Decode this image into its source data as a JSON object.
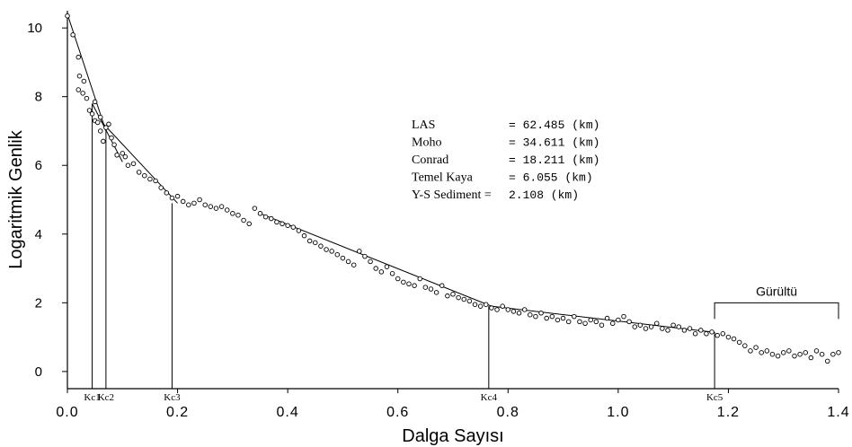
{
  "chart_data": {
    "type": "scatter",
    "title": "",
    "xlabel": "Dalga Sayısı",
    "ylabel": "Logaritmik Genlik",
    "xlim": [
      0.0,
      1.4
    ],
    "ylim": [
      -0.5,
      10.5
    ],
    "xticks": [
      "0.0",
      "0.2",
      "0.4",
      "0.6",
      "0.8",
      "1.0",
      "1.2",
      "1.4"
    ],
    "xtick_values": [
      0.0,
      0.2,
      0.4,
      0.6,
      0.8,
      1.0,
      1.2,
      1.4
    ],
    "yticks": [
      "0",
      "2",
      "4",
      "6",
      "8",
      "10"
    ],
    "ytick_values": [
      0,
      2,
      4,
      6,
      8,
      10
    ],
    "grid": false,
    "series": [
      {
        "style": "open-circles",
        "points": [
          [
            0.0,
            10.35
          ],
          [
            0.01,
            9.8
          ],
          [
            0.02,
            9.15
          ],
          [
            0.022,
            8.6
          ],
          [
            0.02,
            8.2
          ],
          [
            0.028,
            8.1
          ],
          [
            0.03,
            8.45
          ],
          [
            0.035,
            7.95
          ],
          [
            0.04,
            7.6
          ],
          [
            0.045,
            7.5
          ],
          [
            0.05,
            7.85
          ],
          [
            0.05,
            7.3
          ],
          [
            0.055,
            7.25
          ],
          [
            0.06,
            7.0
          ],
          [
            0.06,
            7.4
          ],
          [
            0.065,
            6.7
          ],
          [
            0.07,
            7.1
          ],
          [
            0.075,
            7.2
          ],
          [
            0.08,
            6.8
          ],
          [
            0.085,
            6.6
          ],
          [
            0.09,
            6.3
          ],
          [
            0.1,
            6.35
          ],
          [
            0.105,
            6.25
          ],
          [
            0.11,
            6.0
          ],
          [
            0.12,
            6.05
          ],
          [
            0.13,
            5.8
          ],
          [
            0.14,
            5.7
          ],
          [
            0.15,
            5.6
          ],
          [
            0.16,
            5.55
          ],
          [
            0.17,
            5.35
          ],
          [
            0.18,
            5.2
          ],
          [
            0.19,
            5.05
          ],
          [
            0.2,
            5.1
          ],
          [
            0.21,
            4.95
          ],
          [
            0.22,
            4.85
          ],
          [
            0.23,
            4.9
          ],
          [
            0.24,
            5.0
          ],
          [
            0.25,
            4.85
          ],
          [
            0.26,
            4.8
          ],
          [
            0.27,
            4.75
          ],
          [
            0.28,
            4.8
          ],
          [
            0.29,
            4.7
          ],
          [
            0.3,
            4.6
          ],
          [
            0.31,
            4.55
          ],
          [
            0.32,
            4.4
          ],
          [
            0.33,
            4.3
          ],
          [
            0.34,
            4.75
          ],
          [
            0.35,
            4.6
          ],
          [
            0.36,
            4.5
          ],
          [
            0.37,
            4.45
          ],
          [
            0.38,
            4.35
          ],
          [
            0.39,
            4.3
          ],
          [
            0.4,
            4.25
          ],
          [
            0.41,
            4.2
          ],
          [
            0.42,
            4.1
          ],
          [
            0.43,
            3.95
          ],
          [
            0.44,
            3.8
          ],
          [
            0.45,
            3.75
          ],
          [
            0.46,
            3.65
          ],
          [
            0.47,
            3.55
          ],
          [
            0.48,
            3.5
          ],
          [
            0.49,
            3.4
          ],
          [
            0.5,
            3.3
          ],
          [
            0.51,
            3.2
          ],
          [
            0.52,
            3.1
          ],
          [
            0.53,
            3.5
          ],
          [
            0.54,
            3.35
          ],
          [
            0.55,
            3.2
          ],
          [
            0.56,
            3.0
          ],
          [
            0.57,
            2.9
          ],
          [
            0.58,
            3.05
          ],
          [
            0.59,
            2.85
          ],
          [
            0.6,
            2.7
          ],
          [
            0.61,
            2.6
          ],
          [
            0.62,
            2.55
          ],
          [
            0.63,
            2.5
          ],
          [
            0.64,
            2.7
          ],
          [
            0.65,
            2.45
          ],
          [
            0.66,
            2.4
          ],
          [
            0.67,
            2.3
          ],
          [
            0.68,
            2.5
          ],
          [
            0.69,
            2.2
          ],
          [
            0.7,
            2.25
          ],
          [
            0.71,
            2.15
          ],
          [
            0.72,
            2.1
          ],
          [
            0.73,
            2.05
          ],
          [
            0.74,
            1.95
          ],
          [
            0.75,
            1.9
          ],
          [
            0.76,
            1.95
          ],
          [
            0.77,
            1.85
          ],
          [
            0.78,
            1.8
          ],
          [
            0.79,
            1.9
          ],
          [
            0.8,
            1.8
          ],
          [
            0.81,
            1.75
          ],
          [
            0.82,
            1.7
          ],
          [
            0.83,
            1.8
          ],
          [
            0.84,
            1.65
          ],
          [
            0.85,
            1.6
          ],
          [
            0.86,
            1.7
          ],
          [
            0.87,
            1.55
          ],
          [
            0.88,
            1.6
          ],
          [
            0.89,
            1.5
          ],
          [
            0.9,
            1.55
          ],
          [
            0.91,
            1.45
          ],
          [
            0.92,
            1.6
          ],
          [
            0.93,
            1.45
          ],
          [
            0.94,
            1.4
          ],
          [
            0.95,
            1.5
          ],
          [
            0.96,
            1.45
          ],
          [
            0.97,
            1.35
          ],
          [
            0.98,
            1.55
          ],
          [
            0.99,
            1.4
          ],
          [
            1.0,
            1.5
          ],
          [
            1.01,
            1.6
          ],
          [
            1.02,
            1.45
          ],
          [
            1.03,
            1.3
          ],
          [
            1.04,
            1.35
          ],
          [
            1.05,
            1.25
          ],
          [
            1.06,
            1.3
          ],
          [
            1.07,
            1.4
          ],
          [
            1.08,
            1.25
          ],
          [
            1.09,
            1.2
          ],
          [
            1.1,
            1.35
          ],
          [
            1.11,
            1.3
          ],
          [
            1.12,
            1.2
          ],
          [
            1.13,
            1.25
          ],
          [
            1.14,
            1.1
          ],
          [
            1.15,
            1.2
          ],
          [
            1.16,
            1.1
          ],
          [
            1.17,
            1.15
          ],
          [
            1.18,
            1.05
          ],
          [
            1.19,
            1.1
          ],
          [
            1.2,
            1.0
          ],
          [
            1.21,
            0.95
          ],
          [
            1.22,
            0.85
          ],
          [
            1.23,
            0.75
          ],
          [
            1.24,
            0.6
          ],
          [
            1.25,
            0.7
          ],
          [
            1.26,
            0.55
          ],
          [
            1.27,
            0.6
          ],
          [
            1.28,
            0.5
          ],
          [
            1.29,
            0.45
          ],
          [
            1.3,
            0.55
          ],
          [
            1.31,
            0.6
          ],
          [
            1.32,
            0.45
          ],
          [
            1.33,
            0.5
          ],
          [
            1.34,
            0.55
          ],
          [
            1.35,
            0.4
          ],
          [
            1.36,
            0.6
          ],
          [
            1.37,
            0.5
          ],
          [
            1.38,
            0.3
          ],
          [
            1.39,
            0.5
          ],
          [
            1.4,
            0.55
          ]
        ]
      }
    ],
    "fit_lines": [
      [
        [
          0.0,
          10.4
        ],
        [
          0.07,
          7.0
        ]
      ],
      [
        [
          0.045,
          7.8
        ],
        [
          0.1,
          6.1
        ]
      ],
      [
        [
          0.06,
          7.3
        ],
        [
          0.2,
          4.9
        ]
      ],
      [
        [
          0.35,
          4.6
        ],
        [
          0.77,
          1.9
        ]
      ],
      [
        [
          0.77,
          1.9
        ],
        [
          1.17,
          1.15
        ]
      ]
    ],
    "cutoffs": [
      {
        "label": "Kc1",
        "x": 0.045,
        "y": 7.8
      },
      {
        "label": "Kc2",
        "x": 0.07,
        "y": 7.0
      },
      {
        "label": "Kc3",
        "x": 0.19,
        "y": 4.9
      },
      {
        "label": "Kc4",
        "x": 0.765,
        "y": 1.9
      },
      {
        "label": "Kc5",
        "x": 1.175,
        "y": 1.15
      }
    ],
    "noise_region": {
      "label": "Gürültü",
      "x_start": 1.175,
      "x_end": 1.4,
      "y": 2.0
    },
    "legend": [
      {
        "name": "LAS",
        "value": "= 62.485 (km)"
      },
      {
        "name": "Moho",
        "value": "= 34.611 (km)"
      },
      {
        "name": "Conrad",
        "value": "= 18.211 (km)"
      },
      {
        "name": "Temel Kaya",
        "value": "=   6.055 (km)"
      },
      {
        "name": "Y-S Sediment =",
        "value": "2.108 (km)"
      }
    ],
    "colors": {
      "marks": "#000000",
      "background": "#ffffff"
    }
  }
}
